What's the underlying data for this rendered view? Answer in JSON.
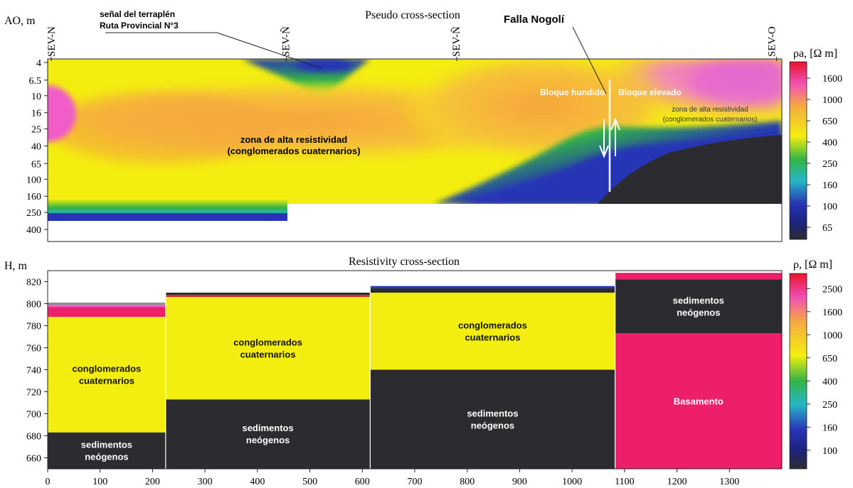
{
  "chart_data": [
    {
      "type": "heatmap",
      "title": "Pseudo cross-section",
      "ylabel": "AO, m",
      "y_scale": "log",
      "y_reversed": true,
      "y_ticks": [
        "4",
        "6.5",
        "10",
        "16",
        "25",
        "40",
        "65",
        "100",
        "160",
        "250",
        "400"
      ],
      "stations": [
        {
          "name": "SEV-N",
          "x": 0
        },
        {
          "name": "SEV-Ñ",
          "x": 455
        },
        {
          "name": "SEV-Ñ",
          "x": 780
        },
        {
          "name": "SEV-O",
          "x": 1390
        }
      ],
      "colorbar": {
        "label": "ρa, [Ω m]",
        "ticks": [
          "1600",
          "1000",
          "650",
          "400",
          "250",
          "160",
          "100",
          "65"
        ]
      },
      "annotations": [
        {
          "text": "señal del terraplén",
          "line2": "Ruta Provincial N°3"
        },
        {
          "text": "Falla Nogolí"
        },
        {
          "text": "Bloque hundido"
        },
        {
          "text": "Bloque elevado"
        },
        {
          "text": "zona de alta resistividad",
          "line2": "(conglomerados cuaternarios)"
        },
        {
          "text": "zona de alta resistividad",
          "line2": "(conglomerados cuaternarios)"
        }
      ],
      "colors": {
        "bg_yellow": "#f4ee10",
        "orange": "#f5ab40",
        "magenta": "#f05cc8",
        "green": "#31b445",
        "blue": "#2734b5",
        "dark": "#2c2c30"
      }
    },
    {
      "type": "bar",
      "title": "Resistivity cross-section",
      "ylabel": "H, m",
      "xlim": [
        0,
        1400
      ],
      "ylim": [
        650,
        830
      ],
      "x_ticks": [
        "0",
        "100",
        "200",
        "300",
        "400",
        "500",
        "600",
        "700",
        "800",
        "900",
        "1000",
        "1100",
        "1200",
        "1300"
      ],
      "y_ticks": [
        "820",
        "800",
        "780",
        "760",
        "740",
        "720",
        "700",
        "680",
        "660"
      ],
      "colorbar": {
        "label": "ρ, [Ω m]",
        "ticks": [
          "2500",
          "1600",
          "1000",
          "650",
          "400",
          "250",
          "160",
          "100"
        ]
      },
      "columns": [
        {
          "x0": 0,
          "x1": 225,
          "layers": [
            {
              "top": 801,
              "bottom": 799,
              "color": "#8f8f8f"
            },
            {
              "top": 799,
              "bottom": 797,
              "color": "#f05cc8"
            },
            {
              "top": 797,
              "bottom": 788,
              "color": "#ee1f6a"
            },
            {
              "top": 788,
              "bottom": 683,
              "color": "#f4ee10",
              "label": "conglomerados",
              "label2": "cuaternarios"
            },
            {
              "top": 683,
              "bottom": 650,
              "color": "#2c2c30",
              "label": "sedimentos",
              "label2": "neógenos"
            }
          ]
        },
        {
          "x0": 225,
          "x1": 615,
          "layers": [
            {
              "top": 810,
              "bottom": 808,
              "color": "#2c2c30"
            },
            {
              "top": 808,
              "bottom": 806,
              "color": "#d62a2a"
            },
            {
              "top": 806,
              "bottom": 713,
              "color": "#f4ee10",
              "label": "conglomerados",
              "label2": "cuaternarios"
            },
            {
              "top": 713,
              "bottom": 650,
              "color": "#2c2c30",
              "label": "sedimentos",
              "label2": "neógenos"
            }
          ]
        },
        {
          "x0": 615,
          "x1": 1082,
          "layers": [
            {
              "top": 816,
              "bottom": 814,
              "color": "#2734b5"
            },
            {
              "top": 814,
              "bottom": 810,
              "color": "#2c2c30"
            },
            {
              "top": 810,
              "bottom": 740,
              "color": "#f4ee10",
              "label": "conglomerados",
              "label2": "cuaternarios"
            },
            {
              "top": 740,
              "bottom": 650,
              "color": "#2c2c30",
              "label": "sedimentos",
              "label2": "neógenos"
            }
          ]
        },
        {
          "x0": 1082,
          "x1": 1400,
          "layers": [
            {
              "top": 828,
              "bottom": 822,
              "color": "#ee1f6a"
            },
            {
              "top": 822,
              "bottom": 773,
              "color": "#2c2c30",
              "label": "sedimentos",
              "label2": "neógenos"
            },
            {
              "top": 773,
              "bottom": 650,
              "color": "#ee1f6a",
              "label": "Basamento"
            }
          ]
        }
      ]
    }
  ]
}
